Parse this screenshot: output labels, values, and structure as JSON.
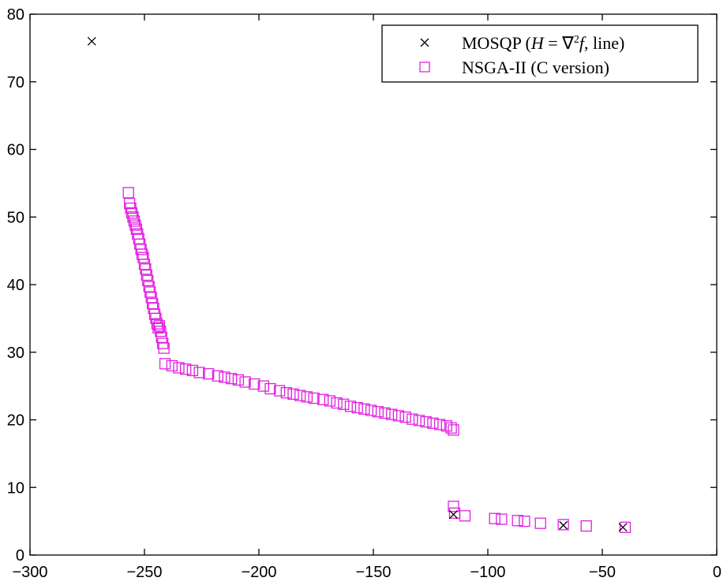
{
  "chart_data": {
    "type": "scatter",
    "title": "",
    "xlabel": "",
    "ylabel": "",
    "xlim": [
      -300,
      0
    ],
    "ylim": [
      0,
      80
    ],
    "xticks": [
      -300,
      -250,
      -200,
      -150,
      -100,
      -50,
      0
    ],
    "yticks": [
      0,
      10,
      20,
      30,
      40,
      50,
      60,
      70,
      80
    ],
    "xtick_labels": [
      "−300",
      "−250",
      "−200",
      "−150",
      "−100",
      "−50",
      "0"
    ],
    "ytick_labels": [
      "0",
      "10",
      "20",
      "30",
      "40",
      "50",
      "60",
      "70",
      "80"
    ],
    "grid": false,
    "legend_position": "top-right",
    "series": [
      {
        "name": "MOSQP (H = ∇²f, line)",
        "marker": "x",
        "color": "#000000",
        "x": [
          -273,
          -115,
          -67,
          -41
        ],
        "y": [
          76,
          6,
          4.4,
          4.1
        ]
      },
      {
        "name": "NSGA-II (C version)",
        "marker": "square",
        "color": "#e020e0",
        "x": [
          -257,
          -256.5,
          -256,
          -255.5,
          -255,
          -254.5,
          -254,
          -253.5,
          -253,
          -252.5,
          -252,
          -251.5,
          -251,
          -250.5,
          -250,
          -249.5,
          -249,
          -248.5,
          -248,
          -247.5,
          -247,
          -246.5,
          -246,
          -245.5,
          -245,
          -244.5,
          -244,
          -243.5,
          -243,
          -242.5,
          -242,
          -241.5,
          -241,
          -238,
          -235,
          -232,
          -229,
          -226,
          -222,
          -218,
          -215,
          -212,
          -209,
          -206,
          -202,
          -198,
          -195,
          -191,
          -188,
          -185,
          -182,
          -179,
          -176,
          -172,
          -169,
          -166,
          -163,
          -160,
          -157,
          -154,
          -151,
          -148,
          -145,
          -142,
          -139,
          -136,
          -133,
          -130,
          -127,
          -124,
          -121,
          -118,
          -116,
          -115,
          -115,
          -114.5,
          -110,
          -97,
          -94,
          -87,
          -84,
          -77,
          -67,
          -57,
          -40
        ],
        "y": [
          53.6,
          52,
          51.3,
          50.6,
          50,
          49.4,
          48.8,
          48.2,
          47.5,
          46.8,
          46,
          45.2,
          44.5,
          44,
          43,
          42.3,
          41.4,
          40.6,
          39.7,
          38.9,
          38.1,
          37.2,
          36.5,
          35.6,
          35,
          34.2,
          33.6,
          33.9,
          33.1,
          32.2,
          31.3,
          30.6,
          28.3,
          28,
          27.7,
          27.5,
          27.3,
          27,
          26.8,
          26.5,
          26.3,
          26.1,
          25.9,
          25.6,
          25.3,
          25,
          24.6,
          24.3,
          24,
          23.8,
          23.6,
          23.4,
          23.2,
          23,
          22.8,
          22.5,
          22.3,
          22,
          21.8,
          21.6,
          21.4,
          21.2,
          21,
          20.8,
          20.6,
          20.4,
          20.1,
          19.9,
          19.7,
          19.5,
          19.3,
          19.1,
          18.8,
          18.5,
          7.2,
          6.2,
          5.8,
          5.4,
          5.3,
          5.1,
          5,
          4.7,
          4.5,
          4.3,
          4.1
        ]
      }
    ]
  }
}
